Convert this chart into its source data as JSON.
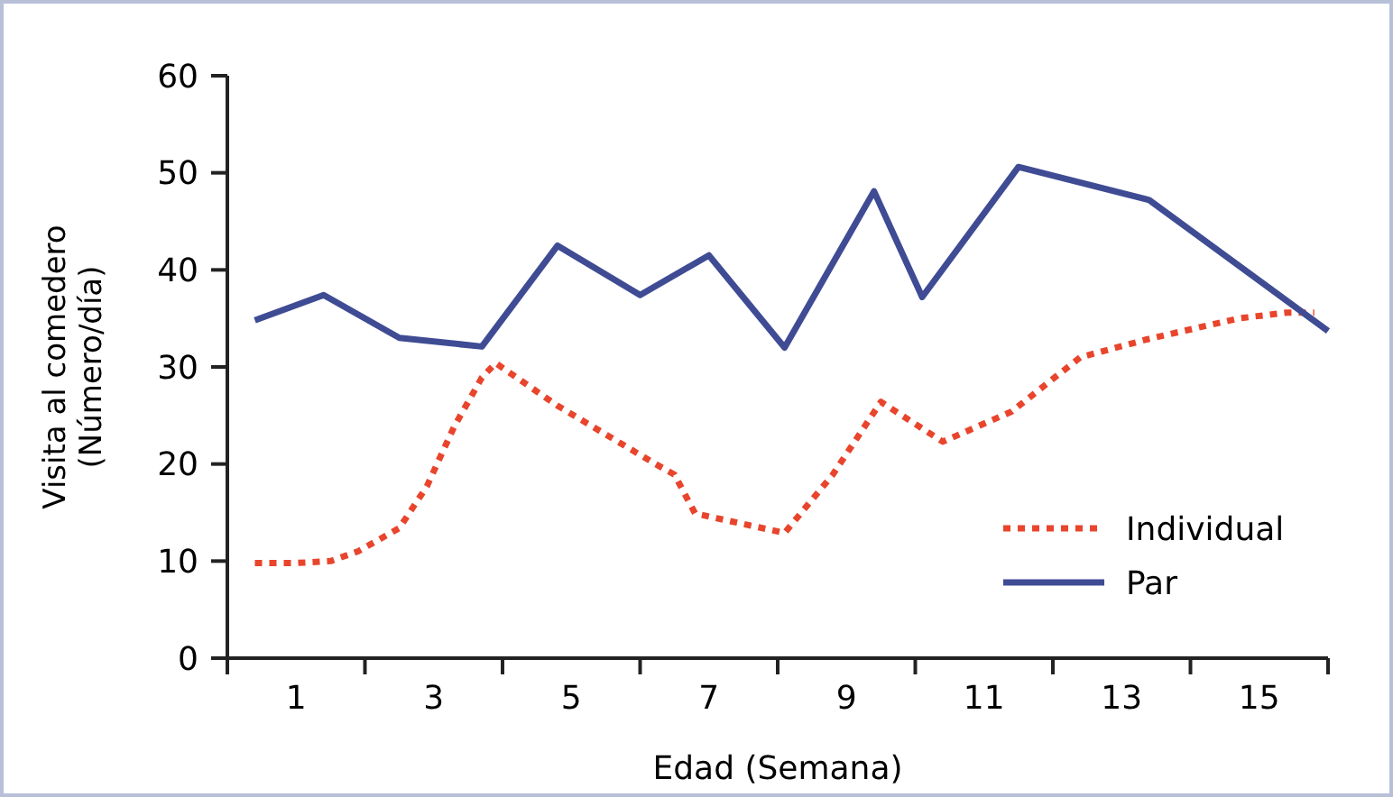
{
  "chart_data": {
    "type": "line",
    "xlabel": "Edad (Semana)",
    "ylabel": "Visita al comedero\n(Número/día)",
    "xlim": [
      0,
      16
    ],
    "xticks": [
      {
        "value": 0,
        "label": null
      },
      {
        "value": 1,
        "label": "1"
      },
      {
        "value": 2,
        "label": null
      },
      {
        "value": 3,
        "label": "3"
      },
      {
        "value": 4,
        "label": null
      },
      {
        "value": 5,
        "label": "5"
      },
      {
        "value": 6,
        "label": null
      },
      {
        "value": 7,
        "label": "7"
      },
      {
        "value": 8,
        "label": null
      },
      {
        "value": 9,
        "label": "9"
      },
      {
        "value": 10,
        "label": null
      },
      {
        "value": 11,
        "label": "11"
      },
      {
        "value": 12,
        "label": null
      },
      {
        "value": 13,
        "label": "13"
      },
      {
        "value": 14,
        "label": null
      },
      {
        "value": 15,
        "label": "15"
      },
      {
        "value": 16,
        "label": null
      }
    ],
    "ylim": [
      0,
      60
    ],
    "yticks": [
      0,
      10,
      20,
      30,
      40,
      50,
      60
    ],
    "grid": false,
    "legend": "bottom right",
    "marker": "none",
    "series": [
      {
        "name": "Individual",
        "color": "#e8452c",
        "line_style": "dotted",
        "x": [
          0.4,
          1.0,
          1.5,
          1.9,
          2.5,
          2.9,
          3.3,
          3.7,
          3.9,
          4.8,
          6.2,
          6.5,
          6.8,
          8.1,
          8.8,
          9.5,
          10.4,
          11.4,
          12.4,
          13.4,
          14.7,
          15.4,
          15.8
        ],
        "values": [
          9.8,
          9.8,
          10,
          11,
          13.4,
          17.7,
          23.9,
          28.9,
          30.4,
          26,
          20.1,
          18.9,
          14.9,
          12.9,
          18.9,
          26.4,
          22.3,
          25.4,
          31,
          32.9,
          35,
          35.6,
          35.6
        ]
      },
      {
        "name": "Par",
        "color": "#3f4c94",
        "line_style": "solid",
        "x": [
          0.4,
          1.4,
          2.5,
          3.7,
          4.8,
          6.0,
          7.0,
          8.1,
          9.4,
          10.1,
          11.5,
          13.4,
          16.0
        ],
        "values": [
          34.8,
          37.4,
          33,
          32.1,
          42.5,
          37.4,
          41.5,
          32,
          48.1,
          37.2,
          50.6,
          47.2,
          33.7
        ]
      }
    ]
  }
}
